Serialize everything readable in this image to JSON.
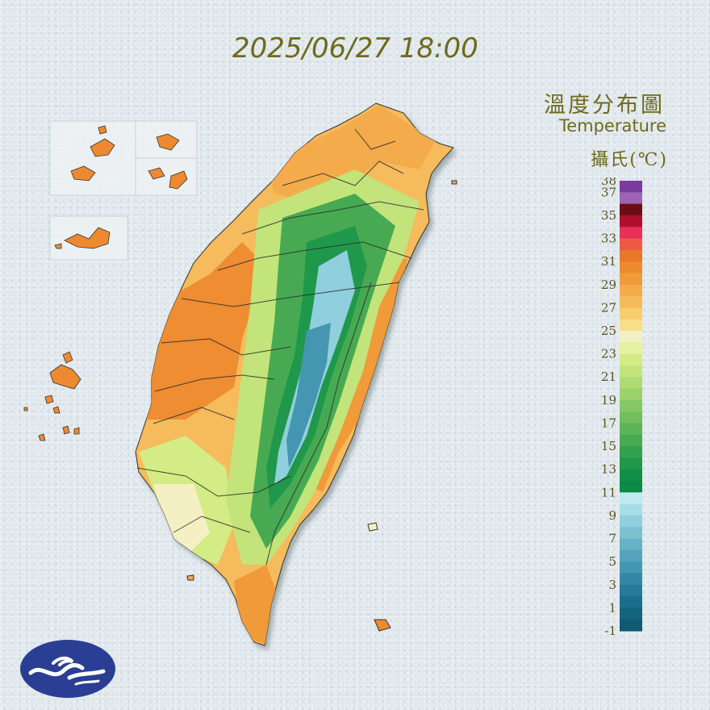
{
  "map": {
    "timestamp": "2025/06/27 18:00",
    "title_zh": "溫度分布圖",
    "title_en": "Temperature",
    "unit": "攝氏(℃)"
  },
  "legend": {
    "ticks": [
      "38",
      "37",
      "35",
      "33",
      "31",
      "29",
      "27",
      "25",
      "23",
      "21",
      "19",
      "17",
      "15",
      "13",
      "11",
      "9",
      "7",
      "5",
      "3",
      "1",
      "-1"
    ],
    "bands": [
      {
        "from": 37,
        "to": 38,
        "color": "#7b3a9e"
      },
      {
        "from": 36,
        "to": 37,
        "color": "#9d63b4"
      },
      {
        "from": 35,
        "to": 36,
        "color": "#6b0e13"
      },
      {
        "from": 34,
        "to": 35,
        "color": "#b0102d"
      },
      {
        "from": 33,
        "to": 34,
        "color": "#e8305a"
      },
      {
        "from": 32,
        "to": 33,
        "color": "#ee5a43"
      },
      {
        "from": 31,
        "to": 32,
        "color": "#e9772a"
      },
      {
        "from": 30,
        "to": 31,
        "color": "#ed8a2f"
      },
      {
        "from": 29,
        "to": 30,
        "color": "#f09a3a"
      },
      {
        "from": 28,
        "to": 29,
        "color": "#f3ab4c"
      },
      {
        "from": 27,
        "to": 28,
        "color": "#f5bb5b"
      },
      {
        "from": 26,
        "to": 27,
        "color": "#f7cd6e"
      },
      {
        "from": 25,
        "to": 26,
        "color": "#f8de86"
      },
      {
        "from": 24,
        "to": 25,
        "color": "#f4f0c4"
      },
      {
        "from": 23,
        "to": 24,
        "color": "#e5f2a0"
      },
      {
        "from": 22,
        "to": 23,
        "color": "#d4ec86"
      },
      {
        "from": 21,
        "to": 22,
        "color": "#c2e47a"
      },
      {
        "from": 20,
        "to": 21,
        "color": "#afdb73"
      },
      {
        "from": 19,
        "to": 20,
        "color": "#9bd26c"
      },
      {
        "from": 18,
        "to": 19,
        "color": "#86c866"
      },
      {
        "from": 17,
        "to": 18,
        "color": "#71be5f"
      },
      {
        "from": 16,
        "to": 17,
        "color": "#5cb458"
      },
      {
        "from": 15,
        "to": 16,
        "color": "#47aa52"
      },
      {
        "from": 14,
        "to": 15,
        "color": "#33a14d"
      },
      {
        "from": 13,
        "to": 14,
        "color": "#20984b"
      },
      {
        "from": 12,
        "to": 13,
        "color": "#118f48"
      },
      {
        "from": 11,
        "to": 12,
        "color": "#0a8a45"
      },
      {
        "from": 10,
        "to": 11,
        "color": "#bfeaf0"
      },
      {
        "from": 9,
        "to": 10,
        "color": "#a7dde7"
      },
      {
        "from": 8,
        "to": 9,
        "color": "#90cfdd"
      },
      {
        "from": 7,
        "to": 8,
        "color": "#7bc1d2"
      },
      {
        "from": 6,
        "to": 7,
        "color": "#67b2c7"
      },
      {
        "from": 5,
        "to": 6,
        "color": "#55a4bc"
      },
      {
        "from": 4,
        "to": 5,
        "color": "#4496b1"
      },
      {
        "from": 3,
        "to": 4,
        "color": "#3488a5"
      },
      {
        "from": 2,
        "to": 3,
        "color": "#267b99"
      },
      {
        "from": 1,
        "to": 2,
        "color": "#1b6f8c"
      },
      {
        "from": 0,
        "to": 1,
        "color": "#14647f"
      },
      {
        "from": -1,
        "to": 0,
        "color": "#115a73"
      }
    ]
  },
  "colors": {
    "background": "#dfe7ec",
    "title_text": "#6f6a1c",
    "coast_warm": "#ed8a2f",
    "plain_warm": "#f5bb5b",
    "foothill": "#c2e47a",
    "mountain": "#47aa52",
    "high_mountain": "#90cfdd",
    "peak": "#3488a5",
    "logo_blue": "#2a3f93"
  },
  "icons": {
    "logo": "cwa-wave-logo"
  }
}
